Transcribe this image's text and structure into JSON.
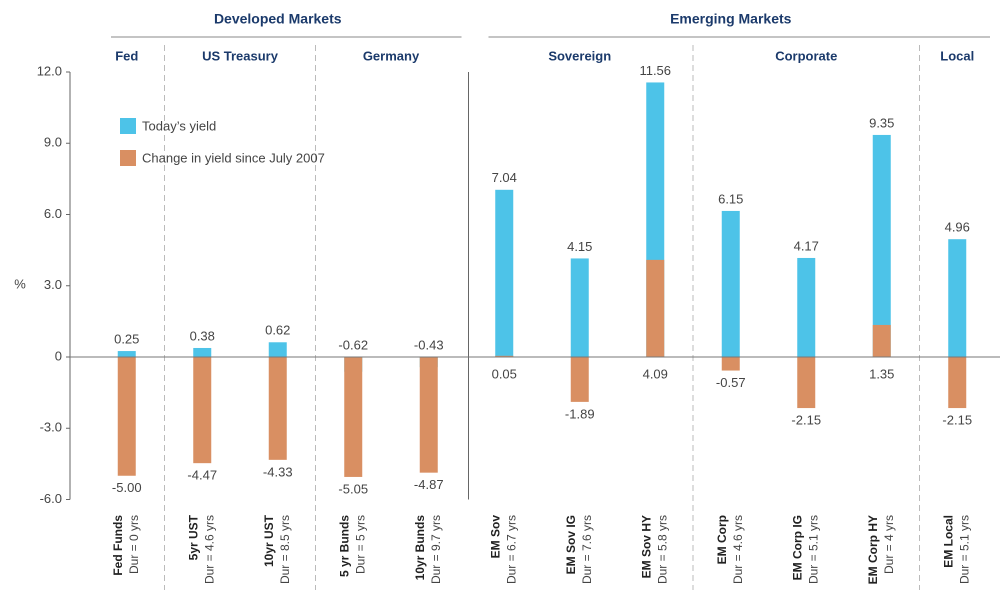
{
  "chart_data": {
    "type": "bar",
    "y_label": "%",
    "groups": [
      {
        "name": "Developed Markets",
        "subgroups": [
          {
            "name": "Fed",
            "categories": [
              "Fed Funds"
            ],
            "durations": [
              "Dur = 0 yrs"
            ]
          },
          {
            "name": "US Treasury",
            "categories": [
              "5yr UST",
              "10yr UST"
            ],
            "durations": [
              "Dur = 4.6 yrs",
              "Dur = 8.5 yrs"
            ]
          },
          {
            "name": "Germany",
            "categories": [
              "5 yr Bunds",
              "10yr Bunds"
            ],
            "durations": [
              "Dur = 5 yrs",
              "Dur = 9.7 yrs"
            ]
          }
        ]
      },
      {
        "name": "Emerging Markets",
        "subgroups": [
          {
            "name": "Sovereign",
            "categories": [
              "EM Sov",
              "EM Sov IG",
              "EM Sov HY"
            ],
            "durations": [
              "Dur = 6.7 yrs",
              "Dur = 7.6 yrs",
              "Dur = 5.8 yrs"
            ]
          },
          {
            "name": "Corporate",
            "categories": [
              "EM Corp",
              "EM Corp IG",
              "EM Corp HY"
            ],
            "durations": [
              "Dur = 4.6 yrs",
              "Dur = 5.1 yrs",
              "Dur = 4 yrs"
            ]
          },
          {
            "name": "Local",
            "categories": [
              "EM Local"
            ],
            "durations": [
              "Dur = 5.1 yrs"
            ]
          }
        ]
      }
    ],
    "series": [
      {
        "name": "Today’s yield",
        "color": "#4dc3e8",
        "values": [
          0.25,
          0.38,
          0.62,
          -0.62,
          -0.43,
          7.04,
          4.15,
          11.56,
          6.15,
          4.17,
          9.35,
          4.96
        ],
        "value_labels": [
          "0.25",
          "0.38",
          "0.62",
          "-0.62",
          "-0.43",
          "7.04",
          "4.15",
          "11.56",
          "6.15",
          "4.17",
          "9.35",
          "4.96"
        ]
      },
      {
        "name": "Change in yield since July 2007",
        "color": "#d98f62",
        "values": [
          -5.0,
          -4.47,
          -4.33,
          -5.05,
          -4.87,
          0.05,
          -1.89,
          4.09,
          -0.57,
          -2.15,
          1.35,
          -2.15
        ],
        "value_labels": [
          "-5.00",
          "-4.47",
          "-4.33",
          "-5.05",
          "-4.87",
          "0.05",
          "-1.89",
          "4.09",
          "-0.57",
          "-2.15",
          "1.35",
          "-2.15"
        ]
      }
    ],
    "ylim": [
      -6,
      12
    ],
    "yticks": [
      {
        "value": -6,
        "label": "-6.0"
      },
      {
        "value": -3,
        "label": "-3.0"
      },
      0,
      {
        "value": 3,
        "label": "3.0"
      },
      {
        "value": 6,
        "label": "6.0"
      },
      {
        "value": 9,
        "label": "9.0"
      },
      {
        "value": 12,
        "label": "12.0"
      }
    ]
  }
}
